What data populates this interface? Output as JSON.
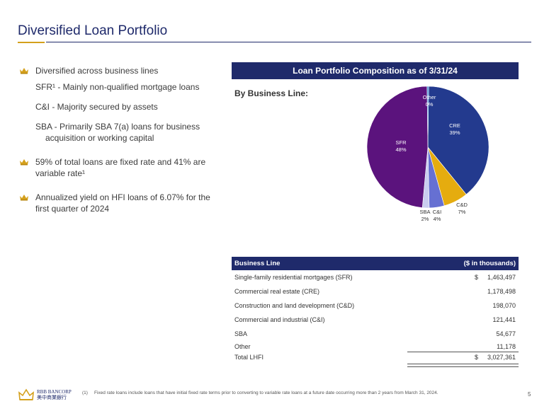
{
  "page": {
    "title": "Diversified Loan Portfolio",
    "page_number": "5"
  },
  "bullets": {
    "b1": "Diversified across business lines",
    "b1_sub1": "SFR¹ - Mainly non-qualified mortgage loans",
    "b1_sub2": "C&I - Majority secured by assets",
    "b1_sub3a": "SBA - Primarily SBA 7(a) loans for business",
    "b1_sub3b": "acquisition or working capital",
    "b2a": "59% of total loans are fixed rate and 41% are",
    "b2b": "variable rate¹",
    "b3a": "Annualized yield on HFI loans of 6.07% for the",
    "b3b": "first quarter of 2024"
  },
  "panel": {
    "header": "Loan Portfolio Composition as of 3/31/24",
    "subheader": "By Business Line:"
  },
  "chart_data": {
    "type": "pie",
    "title": "",
    "slices": [
      {
        "name": "CRE",
        "label": "39%",
        "value": 39,
        "color": "#233a8e"
      },
      {
        "name": "C&D",
        "label": "7%",
        "value": 6.5,
        "color": "#e5ac0f"
      },
      {
        "name": "C&I",
        "label": "4%",
        "value": 4,
        "color": "#6670d2"
      },
      {
        "name": "SBA",
        "label": "2%",
        "value": 1.8,
        "color": "#c9cdef"
      },
      {
        "name": "SFR",
        "label": "48%",
        "value": 48.4,
        "color": "#5b137d"
      },
      {
        "name": "Other",
        "label": "0%",
        "value": 0.4,
        "color": "#3b8fd9"
      }
    ]
  },
  "table": {
    "col_line": "Business Line",
    "col_amount": "($ in thousands)",
    "rows": [
      {
        "name": "Single-family residential mortgages (SFR)",
        "cur": "$",
        "amount": "1,463,497"
      },
      {
        "name": "Commercial real estate (CRE)",
        "cur": "",
        "amount": "1,178,498"
      },
      {
        "name": "Construction and land development (C&D)",
        "cur": "",
        "amount": "198,070"
      },
      {
        "name": "Commercial and industrial (C&I)",
        "cur": "",
        "amount": "121,441"
      },
      {
        "name": "SBA",
        "cur": "",
        "amount": "54,677"
      },
      {
        "name": "Other",
        "cur": "",
        "amount": "11,178"
      }
    ],
    "total": {
      "name": "Total LHFI",
      "cur": "$",
      "amount": "3,027,361"
    }
  },
  "footer": {
    "logo_en": "RBB BANCORP",
    "logo_cn": "美中商業銀行",
    "fn_mark": "(1)",
    "fn_text": "Fixed rate loans include loans that have initial fixed rate terms prior to converting to variable rate loans at a future date occurring more than 2 years from March 31, 2024."
  },
  "colors": {
    "navy": "#1f2a6b",
    "gold": "#d4a01c"
  }
}
